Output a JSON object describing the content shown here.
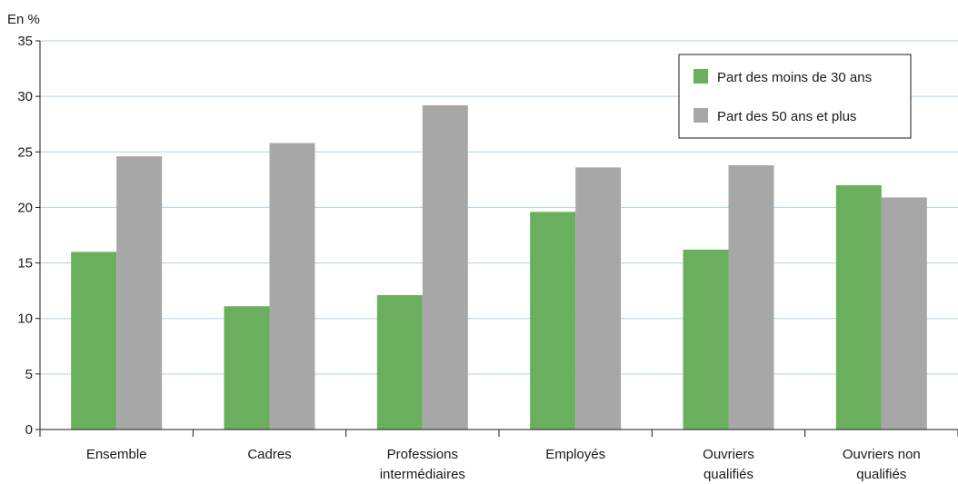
{
  "chart_data": {
    "type": "bar",
    "unit_label": "En %",
    "categories": [
      [
        "Ensemble"
      ],
      [
        "Cadres"
      ],
      [
        "Professions",
        "intermédiaires"
      ],
      [
        "Employés"
      ],
      [
        "Ouvriers",
        "qualifiés"
      ],
      [
        "Ouvriers non",
        "qualifiés"
      ]
    ],
    "series": [
      {
        "name": "Part des moins de 30 ans",
        "color": "#6aaf5e",
        "values": [
          16.0,
          11.1,
          12.1,
          19.6,
          16.2,
          22.0
        ]
      },
      {
        "name": "Part des 50 ans et plus",
        "color": "#a8a7a8",
        "values": [
          24.6,
          25.8,
          29.2,
          23.6,
          23.8,
          20.9
        ]
      }
    ],
    "ylim": [
      0,
      35
    ],
    "yticks": [
      0,
      5,
      10,
      15,
      20,
      25,
      30,
      35
    ],
    "grid": true,
    "grid_color": "#a9d6e3",
    "legend_position": "top-right"
  }
}
